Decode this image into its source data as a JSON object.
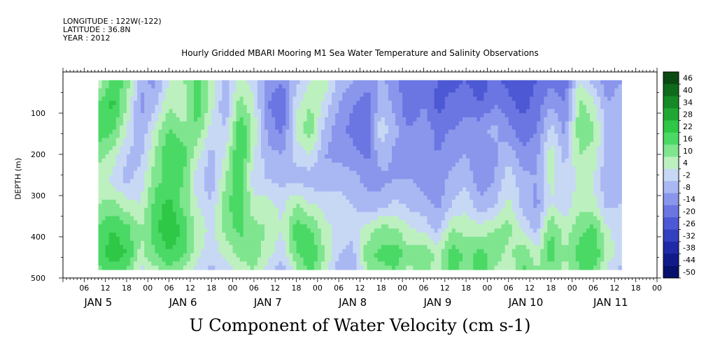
{
  "header": {
    "longitude": "LONGITUDE : 122W(-122)",
    "latitude": "LATITUDE : 36.8N",
    "year": "YEAR : 2012"
  },
  "chart_data": {
    "type": "heatmap",
    "title": "Hourly Gridded MBARI Mooring M1 Sea Water Temperature and Salinity Observations",
    "main_title": "U Component of Water Velocity (cm s-1)",
    "ylabel": "DEPTH (m)",
    "xlabel": "",
    "ylim": [
      500,
      0
    ],
    "y_reversed": true,
    "y_ticks": [
      100,
      200,
      300,
      400,
      500
    ],
    "x_range_hours": [
      0,
      168
    ],
    "x_hour_labels": [
      "06",
      "12",
      "18",
      "00",
      "06",
      "12",
      "18",
      "00",
      "06",
      "12",
      "18",
      "00",
      "06",
      "12",
      "18",
      "00",
      "06",
      "12",
      "18",
      "00",
      "06",
      "12",
      "18",
      "00",
      "06",
      "12",
      "18",
      "00"
    ],
    "day_labels": [
      "JAN  5",
      "JAN  6",
      "JAN  7",
      "JAN  8",
      "JAN  9",
      "JAN 10",
      "JAN 11"
    ],
    "colorbar": {
      "levels": [
        46,
        40,
        34,
        28,
        22,
        16,
        10,
        4,
        -2,
        -8,
        -14,
        -20,
        -26,
        -32,
        -38,
        -44,
        -50
      ],
      "colors": [
        "#0b4a12",
        "#0f6a1c",
        "#158a26",
        "#1ea833",
        "#2ec746",
        "#4ad965",
        "#7fe58e",
        "#bdf0bf",
        "#c7d8f5",
        "#a9b8f2",
        "#8a96ec",
        "#6b76e2",
        "#4d58d4",
        "#3340c0",
        "#1e2aa6",
        "#111a88",
        "#07106a"
      ]
    },
    "grid": false,
    "depth_profiles": [
      {
        "hour": 10,
        "u": [
          4,
          16,
          20,
          12,
          6,
          10,
          16,
          18,
          14
        ]
      },
      {
        "hour": 14,
        "u": [
          20,
          24,
          18,
          8,
          2,
          12,
          22,
          26,
          20
        ]
      },
      {
        "hour": 18,
        "u": [
          14,
          10,
          4,
          -2,
          -4,
          6,
          18,
          22,
          16
        ]
      },
      {
        "hour": 22,
        "u": [
          -6,
          -10,
          -8,
          -4,
          0,
          4,
          10,
          8,
          2
        ]
      },
      {
        "hour": 26,
        "u": [
          -10,
          -4,
          6,
          10,
          14,
          18,
          20,
          16,
          8
        ]
      },
      {
        "hour": 30,
        "u": [
          4,
          10,
          16,
          22,
          18,
          24,
          28,
          22,
          14
        ]
      },
      {
        "hour": 34,
        "u": [
          10,
          4,
          12,
          20,
          16,
          14,
          20,
          18,
          10
        ]
      },
      {
        "hour": 38,
        "u": [
          18,
          22,
          14,
          6,
          0,
          4,
          8,
          6,
          2
        ]
      },
      {
        "hour": 42,
        "u": [
          8,
          6,
          2,
          -4,
          -6,
          -2,
          2,
          0,
          -4
        ]
      },
      {
        "hour": 46,
        "u": [
          -4,
          -8,
          -2,
          4,
          10,
          14,
          12,
          6,
          0
        ]
      },
      {
        "hour": 50,
        "u": [
          6,
          14,
          22,
          24,
          20,
          22,
          18,
          12,
          6
        ]
      },
      {
        "hour": 54,
        "u": [
          2,
          4,
          8,
          4,
          0,
          6,
          12,
          14,
          10
        ]
      },
      {
        "hour": 58,
        "u": [
          -10,
          -14,
          -10,
          -6,
          -2,
          6,
          10,
          6,
          2
        ]
      },
      {
        "hour": 62,
        "u": [
          -14,
          -20,
          -16,
          -8,
          -4,
          2,
          4,
          0,
          -6
        ]
      },
      {
        "hour": 66,
        "u": [
          -4,
          2,
          6,
          0,
          -4,
          10,
          20,
          16,
          8
        ]
      },
      {
        "hour": 70,
        "u": [
          4,
          10,
          14,
          4,
          -6,
          4,
          16,
          22,
          18
        ]
      },
      {
        "hour": 74,
        "u": [
          8,
          2,
          -4,
          -8,
          -6,
          2,
          6,
          10,
          6
        ]
      },
      {
        "hour": 78,
        "u": [
          -4,
          -8,
          -12,
          -10,
          -4,
          0,
          2,
          -2,
          -6
        ]
      },
      {
        "hour": 82,
        "u": [
          -8,
          -14,
          -16,
          -12,
          -6,
          -2,
          0,
          -4,
          -8
        ]
      },
      {
        "hour": 86,
        "u": [
          -12,
          -18,
          -20,
          -16,
          -10,
          -6,
          6,
          14,
          10
        ]
      },
      {
        "hour": 90,
        "u": [
          -6,
          -4,
          2,
          -4,
          -10,
          -6,
          12,
          18,
          14
        ]
      },
      {
        "hour": 94,
        "u": [
          -12,
          -10,
          -6,
          -10,
          -8,
          0,
          10,
          20,
          16
        ]
      },
      {
        "hour": 98,
        "u": [
          -18,
          -20,
          -14,
          -12,
          -8,
          -4,
          4,
          12,
          8
        ]
      },
      {
        "hour": 102,
        "u": [
          -16,
          -14,
          -10,
          -12,
          -10,
          -6,
          2,
          16,
          14
        ]
      },
      {
        "hour": 106,
        "u": [
          -20,
          -22,
          -16,
          -14,
          -12,
          -10,
          -4,
          8,
          6
        ]
      },
      {
        "hour": 110,
        "u": [
          -22,
          -18,
          -14,
          -10,
          -6,
          -2,
          10,
          20,
          22
        ]
      },
      {
        "hour": 114,
        "u": [
          -20,
          -16,
          -12,
          -8,
          -4,
          2,
          8,
          14,
          12
        ]
      },
      {
        "hour": 118,
        "u": [
          -24,
          -20,
          -10,
          -14,
          -12,
          -6,
          6,
          18,
          20
        ]
      },
      {
        "hour": 122,
        "u": [
          -18,
          -14,
          -6,
          -10,
          -8,
          -4,
          10,
          14,
          10
        ]
      },
      {
        "hour": 126,
        "u": [
          -22,
          -18,
          -12,
          -4,
          2,
          6,
          12,
          8,
          4
        ]
      },
      {
        "hour": 130,
        "u": [
          -24,
          -22,
          -18,
          -12,
          -6,
          -4,
          2,
          14,
          18
        ]
      },
      {
        "hour": 134,
        "u": [
          -20,
          -18,
          -14,
          -10,
          -8,
          -10,
          -4,
          6,
          10
        ]
      },
      {
        "hour": 138,
        "u": [
          -16,
          -8,
          0,
          8,
          6,
          4,
          16,
          20,
          14
        ]
      },
      {
        "hour": 142,
        "u": [
          -18,
          -14,
          -10,
          -4,
          -2,
          0,
          6,
          10,
          8
        ]
      },
      {
        "hour": 146,
        "u": [
          4,
          12,
          14,
          10,
          6,
          8,
          14,
          18,
          16
        ]
      },
      {
        "hour": 150,
        "u": [
          -4,
          6,
          12,
          8,
          4,
          6,
          18,
          22,
          16
        ]
      },
      {
        "hour": 154,
        "u": [
          -12,
          -8,
          -4,
          -6,
          -8,
          -4,
          4,
          8,
          2
        ]
      },
      {
        "hour": 158,
        "u": [
          -8,
          -4,
          -2,
          -4,
          -6,
          -2,
          2,
          0,
          -4
        ]
      }
    ],
    "profile_depths": [
      20,
      80,
      140,
      200,
      260,
      320,
      380,
      440,
      480
    ]
  }
}
